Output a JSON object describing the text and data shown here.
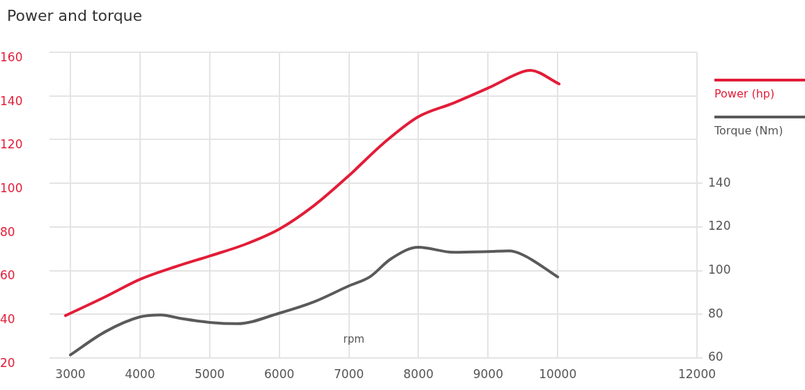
{
  "chart_data": {
    "type": "line",
    "title": "Power and torque",
    "xlabel": "rpm",
    "xlim": [
      2700,
      12000
    ],
    "xticks": [
      3000,
      4000,
      5000,
      6000,
      7000,
      8000,
      9000,
      10000,
      12000
    ],
    "ylim": [
      20,
      160
    ],
    "yticks": [
      20,
      40,
      60,
      80,
      100,
      120,
      140,
      160
    ],
    "y2lim": [
      60,
      200
    ],
    "y2ticks": [
      60,
      80,
      100,
      120,
      140
    ],
    "grid": true,
    "legend": "right",
    "marker": "none",
    "line_style": "solid",
    "series": [
      {
        "name": "Power (hp)",
        "color": "#e21d38",
        "x": [
          2930,
          3500,
          4000,
          4500,
          5000,
          5500,
          6000,
          6500,
          7000,
          7500,
          8000,
          8500,
          9000,
          9500,
          9600,
          10020
        ],
        "values": [
          39.4,
          48,
          56,
          61.7,
          66.7,
          71.9,
          79,
          89.8,
          103.5,
          118.4,
          130.5,
          136.7,
          143.6,
          151.1,
          151.7,
          145.5
        ]
      },
      {
        "name": "Torque (Nm)",
        "color": "#5a5a5a",
        "axis": "y2",
        "x": [
          3000,
          3500,
          4000,
          4300,
          4600,
          5000,
          5400,
          6000,
          6500,
          7000,
          7300,
          7600,
          8000,
          8500,
          9000,
          9300,
          9500,
          10000
        ],
        "values": [
          61.4,
          72,
          78.8,
          79.7,
          78,
          76.3,
          75.7,
          80.5,
          85.7,
          93,
          97.1,
          105.3,
          110.7,
          108.4,
          108.7,
          109,
          107.2,
          97.1
        ]
      }
    ]
  }
}
